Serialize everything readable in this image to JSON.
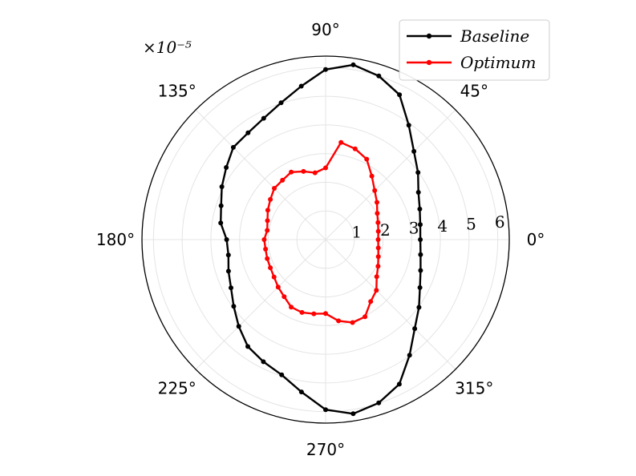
{
  "chart_data": {
    "type": "line",
    "projection": "polar",
    "title": "",
    "scale_label": "×10⁻⁵",
    "angle_ticks": [
      {
        "angle": 0,
        "label": "0°"
      },
      {
        "angle": 45,
        "label": "45°"
      },
      {
        "angle": 90,
        "label": "90°"
      },
      {
        "angle": 135,
        "label": "135°"
      },
      {
        "angle": 180,
        "label": "180°"
      },
      {
        "angle": 225,
        "label": "225°"
      },
      {
        "angle": 270,
        "label": "270°"
      },
      {
        "angle": 315,
        "label": "315°"
      }
    ],
    "r_ticks": [
      1,
      2,
      3,
      4,
      5,
      6
    ],
    "r_tick_labels": [
      "1",
      "2",
      "3",
      "4",
      "5",
      "6"
    ],
    "rlim": [
      0,
      6.4
    ],
    "grid": true,
    "legend_position": "top-right",
    "series": [
      {
        "name": "Baseline",
        "color": "#000000",
        "theta": [
          0,
          9,
          18,
          27,
          36,
          45,
          54,
          63,
          72,
          81,
          90,
          99,
          108,
          117,
          126,
          135,
          144,
          153,
          162,
          171,
          180,
          189,
          198,
          207,
          216,
          225,
          234,
          243,
          252,
          261,
          270,
          279,
          288,
          297,
          306,
          315,
          324,
          333,
          342,
          351
        ],
        "r": [
          3.3,
          3.34,
          3.45,
          3.63,
          3.98,
          4.35,
          4.93,
          5.67,
          6.0,
          6.17,
          5.93,
          5.42,
          5.02,
          4.75,
          4.6,
          4.55,
          4.28,
          4.06,
          3.83,
          3.7,
          3.45,
          3.43,
          3.56,
          3.7,
          3.96,
          4.28,
          4.61,
          4.78,
          4.96,
          5.38,
          5.93,
          6.15,
          5.99,
          5.66,
          4.98,
          4.39,
          4.02,
          3.69,
          3.48,
          3.35
        ]
      },
      {
        "name": "Optimum",
        "color": "#ff0000",
        "theta": [
          0,
          9,
          18,
          27,
          36,
          45,
          54,
          63,
          72,
          81,
          90,
          99,
          108,
          117,
          126,
          135,
          144,
          153,
          162,
          171,
          180,
          189,
          198,
          207,
          216,
          225,
          234,
          243,
          252,
          261,
          270,
          279,
          288,
          297,
          306,
          315,
          324,
          333,
          342,
          351
        ],
        "r": [
          1.83,
          1.86,
          1.92,
          2.02,
          2.21,
          2.42,
          2.74,
          3.15,
          3.33,
          3.43,
          2.5,
          2.36,
          2.5,
          2.64,
          2.56,
          2.53,
          2.38,
          2.26,
          2.13,
          2.06,
          2.14,
          2.12,
          2.14,
          2.16,
          2.22,
          2.34,
          2.46,
          2.64,
          2.67,
          2.62,
          2.58,
          2.87,
          3.04,
          3.02,
          2.67,
          2.5,
          2.2,
          2.05,
          1.93,
          1.86
        ]
      }
    ]
  }
}
